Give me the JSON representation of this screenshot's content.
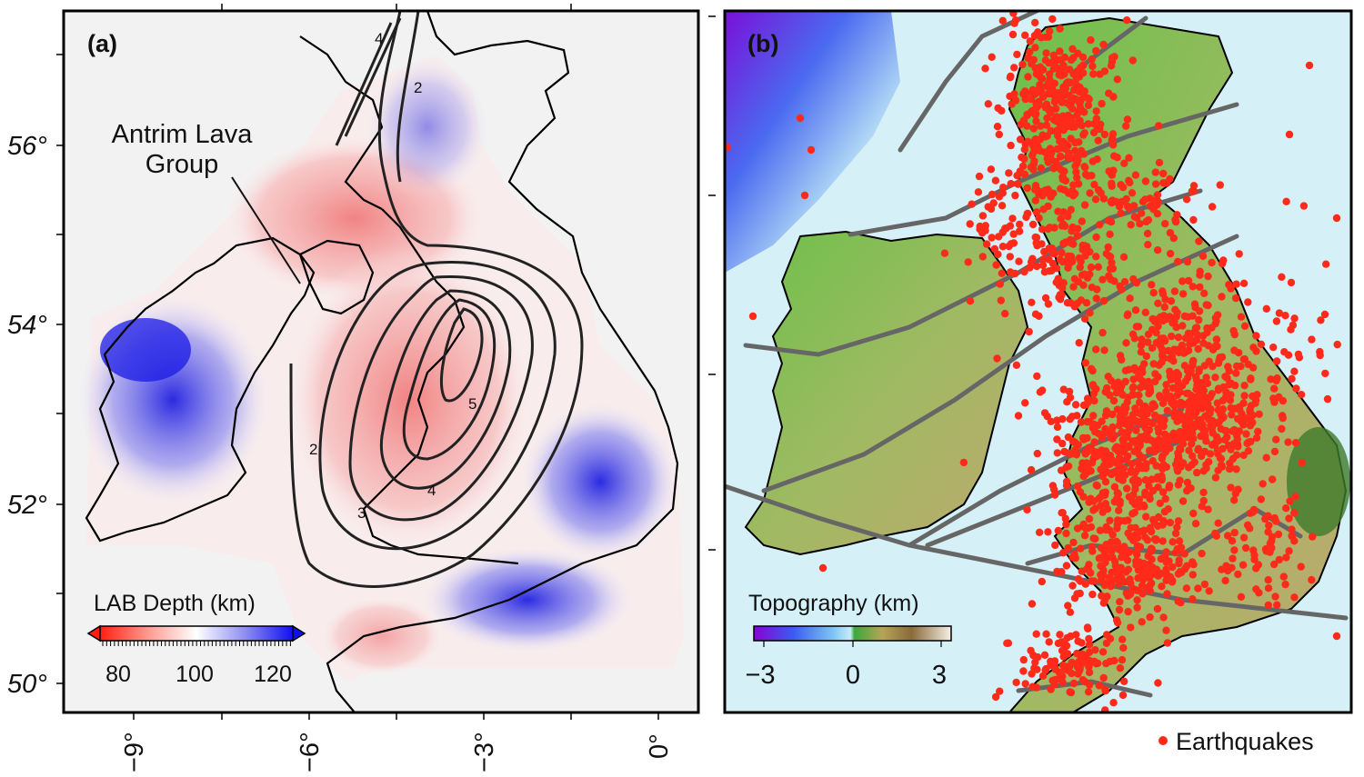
{
  "panels": {
    "a": {
      "label": "(a)",
      "annotation": [
        "Antrim Lava",
        "Group"
      ],
      "colorbar": {
        "title": "LAB Depth (km)",
        "ticks": [
          "80",
          "100",
          "120"
        ],
        "colors": [
          "#ff2010",
          "#ffffff",
          "#1010ee"
        ]
      },
      "contour_labels": [
        "2",
        "2",
        "3",
        "4",
        "4",
        "5"
      ],
      "lat_labels": [
        "56°",
        "54°",
        "52°",
        "50°"
      ],
      "lon_labels": [
        "−9°",
        "−6°",
        "−3°",
        "0°"
      ]
    },
    "b": {
      "label": "(b)",
      "colorbar": {
        "title": "Topography (km)",
        "ticks": [
          "−3",
          "0",
          "3"
        ],
        "colors": [
          "#8a00d4",
          "#2a6ef0",
          "#b9e6f5",
          "#2e9e2e",
          "#a38a4a",
          "#f0e6d8"
        ]
      },
      "legend": {
        "label": "Earthquakes",
        "marker_color": "#ff2a1a"
      }
    }
  },
  "colors": {
    "earthquake": "#ff2a1a",
    "fault": "#666666",
    "coast": "#000000",
    "land_bg": "#f2f2f2"
  }
}
